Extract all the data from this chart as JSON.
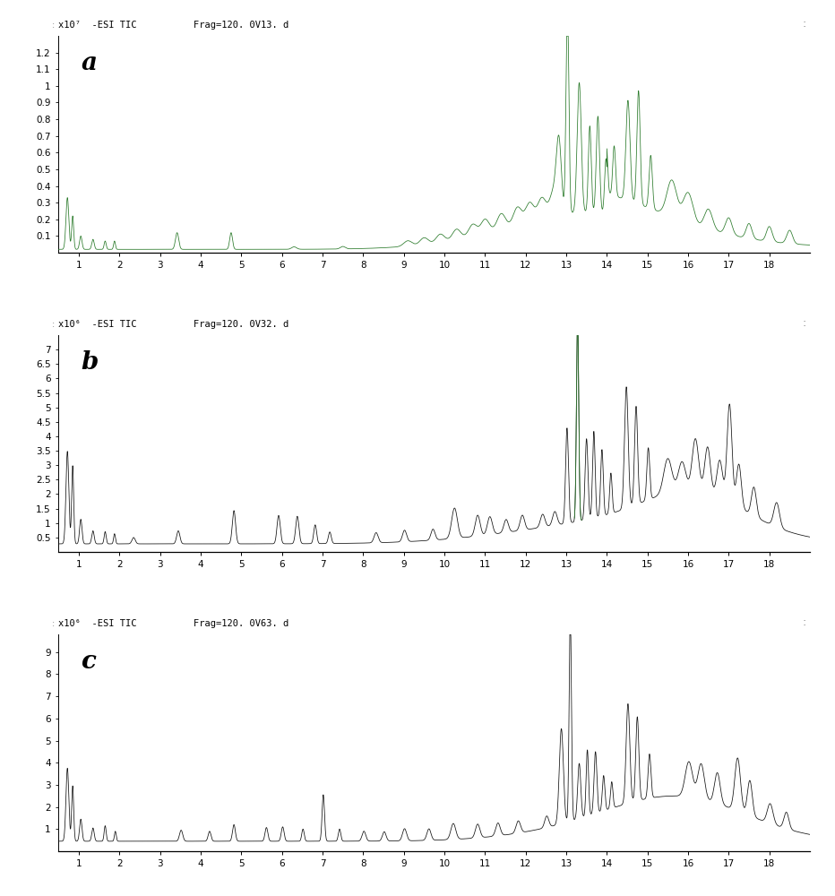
{
  "panels": [
    {
      "label": "a",
      "header_left": "x10⁷  -ESI TIC",
      "header_right": "Frag=120. 0V13. d",
      "yticks": [
        0.1,
        0.2,
        0.3,
        0.4,
        0.5,
        0.6,
        0.7,
        0.8,
        0.9,
        1.0,
        1.1,
        1.2
      ],
      "ytick_labels": [
        "0.1",
        "0.2",
        "0.3",
        "0.4",
        "0.5",
        "0.6",
        "0.7",
        "0.8",
        "0.9",
        "1",
        "1.1",
        "1.2"
      ],
      "ymax": 1.3,
      "ymin": 0.0,
      "line_color": "#2a7a2a",
      "peak_color": "#2a7a2a"
    },
    {
      "label": "b",
      "header_left": "x10⁶  -ESI TIC",
      "header_right": "Frag=120. 0V32. d",
      "yticks": [
        0.5,
        1.0,
        1.5,
        2.0,
        2.5,
        3.0,
        3.5,
        4.0,
        4.5,
        5.0,
        5.5,
        6.0,
        6.5,
        7.0
      ],
      "ytick_labels": [
        "0.5",
        "1",
        "1.5",
        "2",
        "2.5",
        "3",
        "3.5",
        "4",
        "4.5",
        "5",
        "5.5",
        "6",
        "6.5",
        "7"
      ],
      "ymax": 7.5,
      "ymin": 0.0,
      "line_color": "#111111",
      "peak_color": "#2a7a2a"
    },
    {
      "label": "c",
      "header_left": "x10⁶  -ESI TIC",
      "header_right": "Frag=120. 0V63. d",
      "yticks": [
        1,
        2,
        3,
        4,
        5,
        6,
        7,
        8,
        9
      ],
      "ytick_labels": [
        "1",
        "2",
        "3",
        "4",
        "5",
        "6",
        "7",
        "8",
        "9"
      ],
      "ymax": 9.8,
      "ymin": 0.0,
      "line_color": "#111111",
      "peak_color": "#111111"
    }
  ],
  "xmin": 0.5,
  "xmax": 19.0,
  "xticks": [
    1,
    2,
    3,
    4,
    5,
    6,
    7,
    8,
    9,
    10,
    11,
    12,
    13,
    14,
    15,
    16,
    17,
    18
  ],
  "background_color": "#ffffff"
}
